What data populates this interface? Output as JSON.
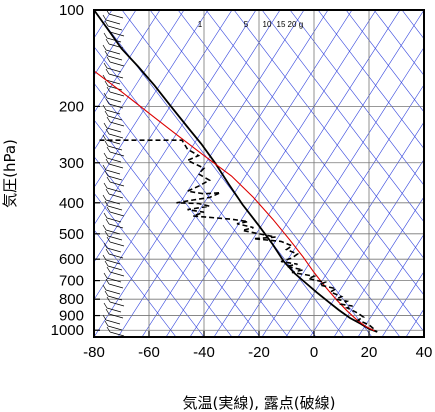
{
  "chart_data": {
    "type": "line",
    "title": "",
    "xlabel": "気温(実線), 露点(破線)",
    "ylabel": "気圧(hPa)",
    "x_ticks": [
      -80,
      -60,
      -40,
      -20,
      0,
      20,
      40
    ],
    "y_ticks": [
      100,
      200,
      300,
      400,
      500,
      600,
      700,
      800,
      900,
      1000
    ],
    "xlim": [
      -80,
      40
    ],
    "ylim": [
      1050,
      100
    ],
    "y_scale": "log",
    "grid": true,
    "mixing_ratio_labels": [
      "1",
      "5",
      "10",
      "15",
      "20",
      "g"
    ],
    "series": [
      {
        "style": "solid-black",
        "points": [
          [
            -80,
            100
          ],
          [
            -74,
            118
          ],
          [
            -70,
            132
          ],
          [
            -64,
            150
          ],
          [
            -58,
            172
          ],
          [
            -52,
            200
          ],
          [
            -46,
            232
          ],
          [
            -41,
            262
          ],
          [
            -36,
            300
          ],
          [
            -31,
            350
          ],
          [
            -26,
            405
          ],
          [
            -20,
            472
          ],
          [
            -15,
            540
          ],
          [
            -11,
            610
          ],
          [
            -7,
            665
          ],
          [
            -3,
            712
          ],
          [
            1,
            762
          ],
          [
            5,
            812
          ],
          [
            9,
            865
          ],
          [
            13,
            915
          ],
          [
            17,
            955
          ],
          [
            20,
            990
          ],
          [
            23,
            1012
          ]
        ]
      },
      {
        "style": "solid-red",
        "points": [
          [
            -80,
            155
          ],
          [
            -70,
            180
          ],
          [
            -60,
            210
          ],
          [
            -50,
            245
          ],
          [
            -40,
            285
          ],
          [
            -30,
            330
          ],
          [
            -22,
            385
          ],
          [
            -15,
            450
          ],
          [
            -9,
            520
          ],
          [
            -4,
            590
          ],
          [
            0,
            660
          ],
          [
            4,
            730
          ],
          [
            8,
            800
          ],
          [
            12,
            870
          ],
          [
            16,
            935
          ],
          [
            19,
            975
          ],
          [
            22,
            1005
          ]
        ]
      },
      {
        "style": "dashed-black",
        "points": [
          [
            -78,
            255
          ],
          [
            -60,
            255
          ],
          [
            -48,
            255
          ],
          [
            -46,
            272
          ],
          [
            -42,
            285
          ],
          [
            -46,
            295
          ],
          [
            -40,
            312
          ],
          [
            -42,
            325
          ],
          [
            -38,
            340
          ],
          [
            -42,
            355
          ],
          [
            -46,
            368
          ],
          [
            -40,
            375
          ],
          [
            -34,
            372
          ],
          [
            -38,
            385
          ],
          [
            -44,
            392
          ],
          [
            -50,
            400
          ],
          [
            -42,
            402
          ],
          [
            -38,
            410
          ],
          [
            -46,
            420
          ],
          [
            -40,
            428
          ],
          [
            -44,
            440
          ],
          [
            -30,
            450
          ],
          [
            -24,
            458
          ],
          [
            -28,
            465
          ],
          [
            -22,
            478
          ],
          [
            -26,
            488
          ],
          [
            -20,
            500
          ],
          [
            -14,
            512
          ],
          [
            -22,
            518
          ],
          [
            -12,
            528
          ],
          [
            -8,
            545
          ],
          [
            -10,
            560
          ],
          [
            -6,
            578
          ],
          [
            -8,
            595
          ],
          [
            -12,
            610
          ],
          [
            -6,
            622
          ],
          [
            -10,
            632
          ],
          [
            -4,
            648
          ],
          [
            -8,
            660
          ],
          [
            0,
            678
          ],
          [
            -2,
            690
          ],
          [
            4,
            708
          ],
          [
            2,
            722
          ],
          [
            8,
            742
          ],
          [
            6,
            760
          ],
          [
            10,
            785
          ],
          [
            8,
            800
          ],
          [
            12,
            812
          ],
          [
            10,
            830
          ],
          [
            14,
            840
          ],
          [
            12,
            852
          ],
          [
            14,
            868
          ],
          [
            16,
            885
          ],
          [
            18,
            910
          ],
          [
            16,
            930
          ],
          [
            20,
            962
          ],
          [
            22,
            995
          ]
        ]
      }
    ],
    "wind_barbs": "left-edge"
  }
}
